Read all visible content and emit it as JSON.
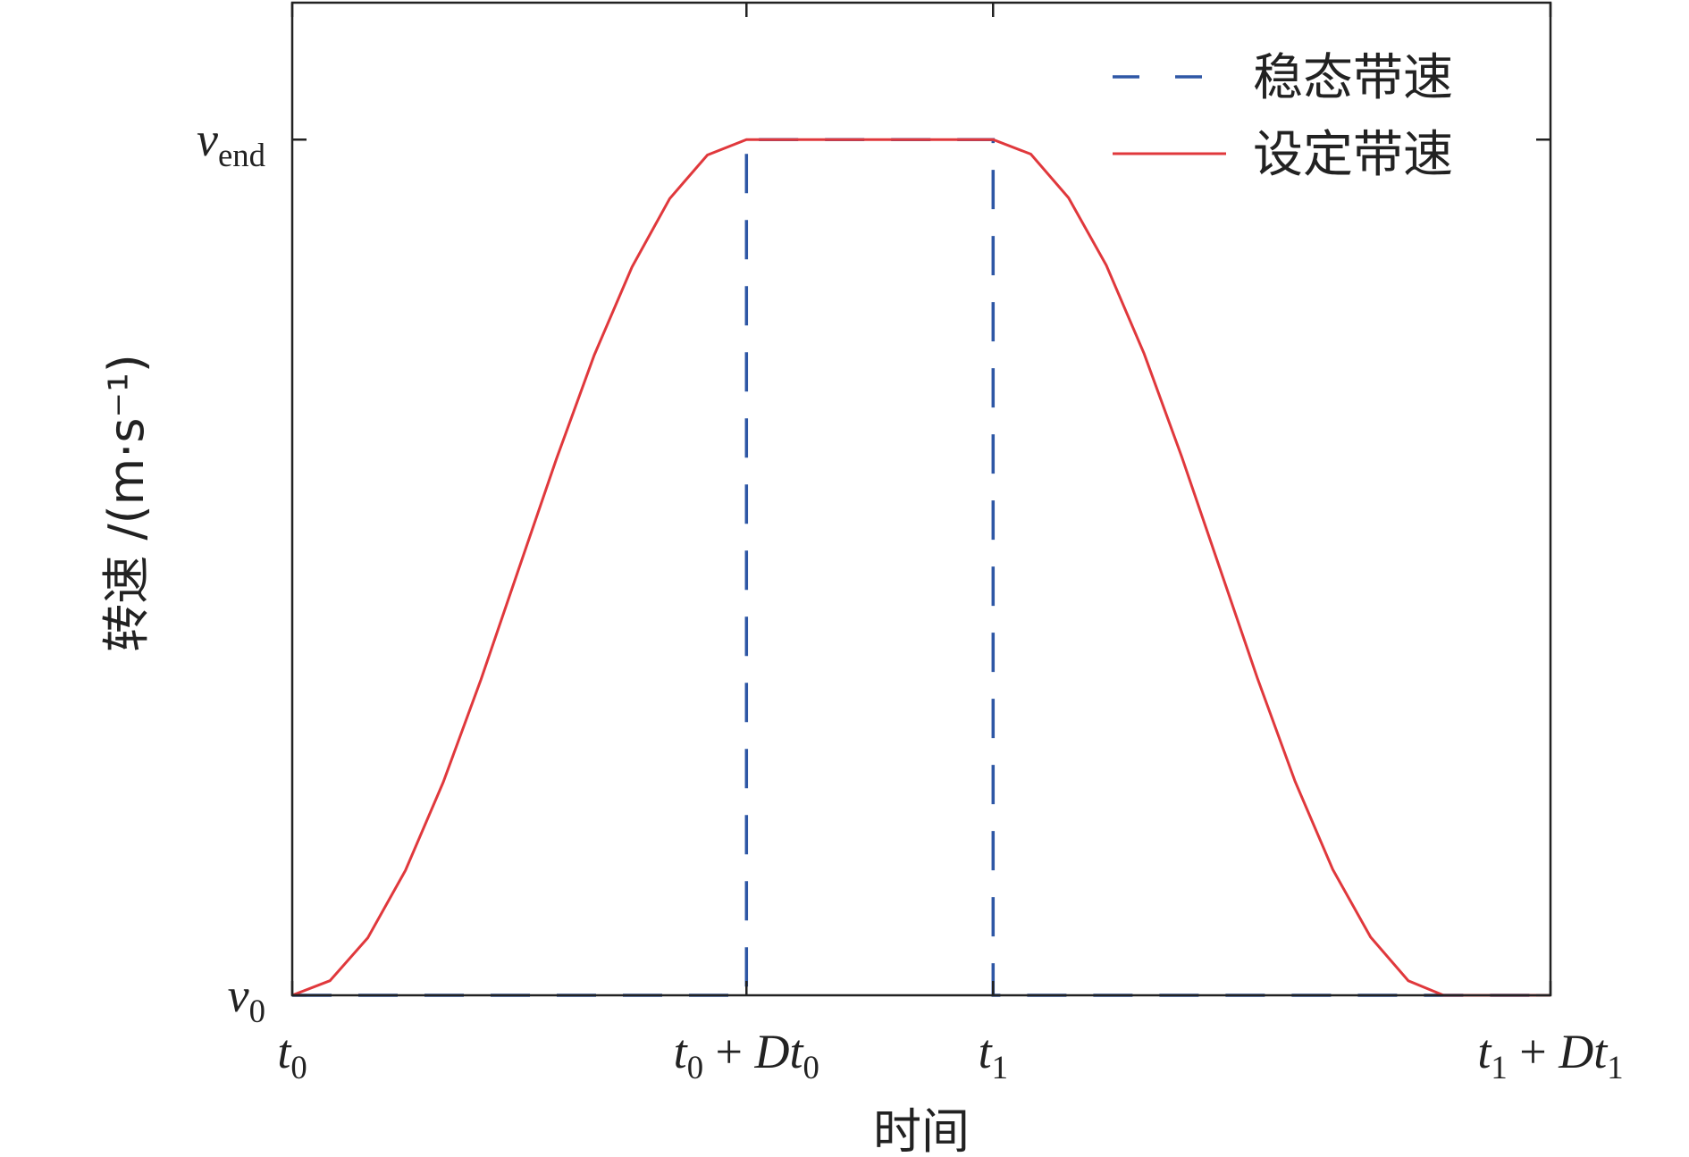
{
  "chart_data": {
    "type": "line",
    "x_label": "时间",
    "y_label": "转速 /(m·s⁻¹)",
    "xlim": [
      0,
      100
    ],
    "xticks": [
      {
        "value": 0,
        "label": "t0"
      },
      {
        "value": 36.1,
        "label": "t0 + Dt0"
      },
      {
        "value": 55.7,
        "label": "t1"
      },
      {
        "value": 100,
        "label": "t1 + Dt1"
      }
    ],
    "ylim": [
      0,
      1.16
    ],
    "yticks": [
      {
        "value": 0,
        "label": "v0"
      },
      {
        "value": 1,
        "label": "vend"
      }
    ],
    "grid": false,
    "legend": "upper right",
    "series": [
      {
        "name": "稳态带速",
        "color": "#2e57a5",
        "dash": true,
        "x": [
          0,
          36.1,
          36.1,
          55.7,
          55.7,
          100
        ],
        "values": [
          0,
          0,
          1,
          1,
          0,
          0
        ]
      },
      {
        "name": "设定带速",
        "color": "#e0383c",
        "dash": false,
        "x": [
          0,
          3,
          6,
          9,
          12,
          15,
          18,
          21,
          24,
          27,
          30,
          33,
          36.1,
          55.7,
          58.7,
          61.7,
          64.7,
          67.7,
          70.7,
          73.7,
          76.7,
          79.7,
          82.7,
          85.7,
          88.7,
          91.5,
          100
        ],
        "values": [
          0,
          0.017,
          0.067,
          0.146,
          0.249,
          0.369,
          0.498,
          0.627,
          0.748,
          0.851,
          0.931,
          0.982,
          1,
          1,
          0.983,
          0.932,
          0.853,
          0.75,
          0.629,
          0.5,
          0.371,
          0.25,
          0.147,
          0.068,
          0.017,
          0,
          0
        ]
      }
    ]
  }
}
